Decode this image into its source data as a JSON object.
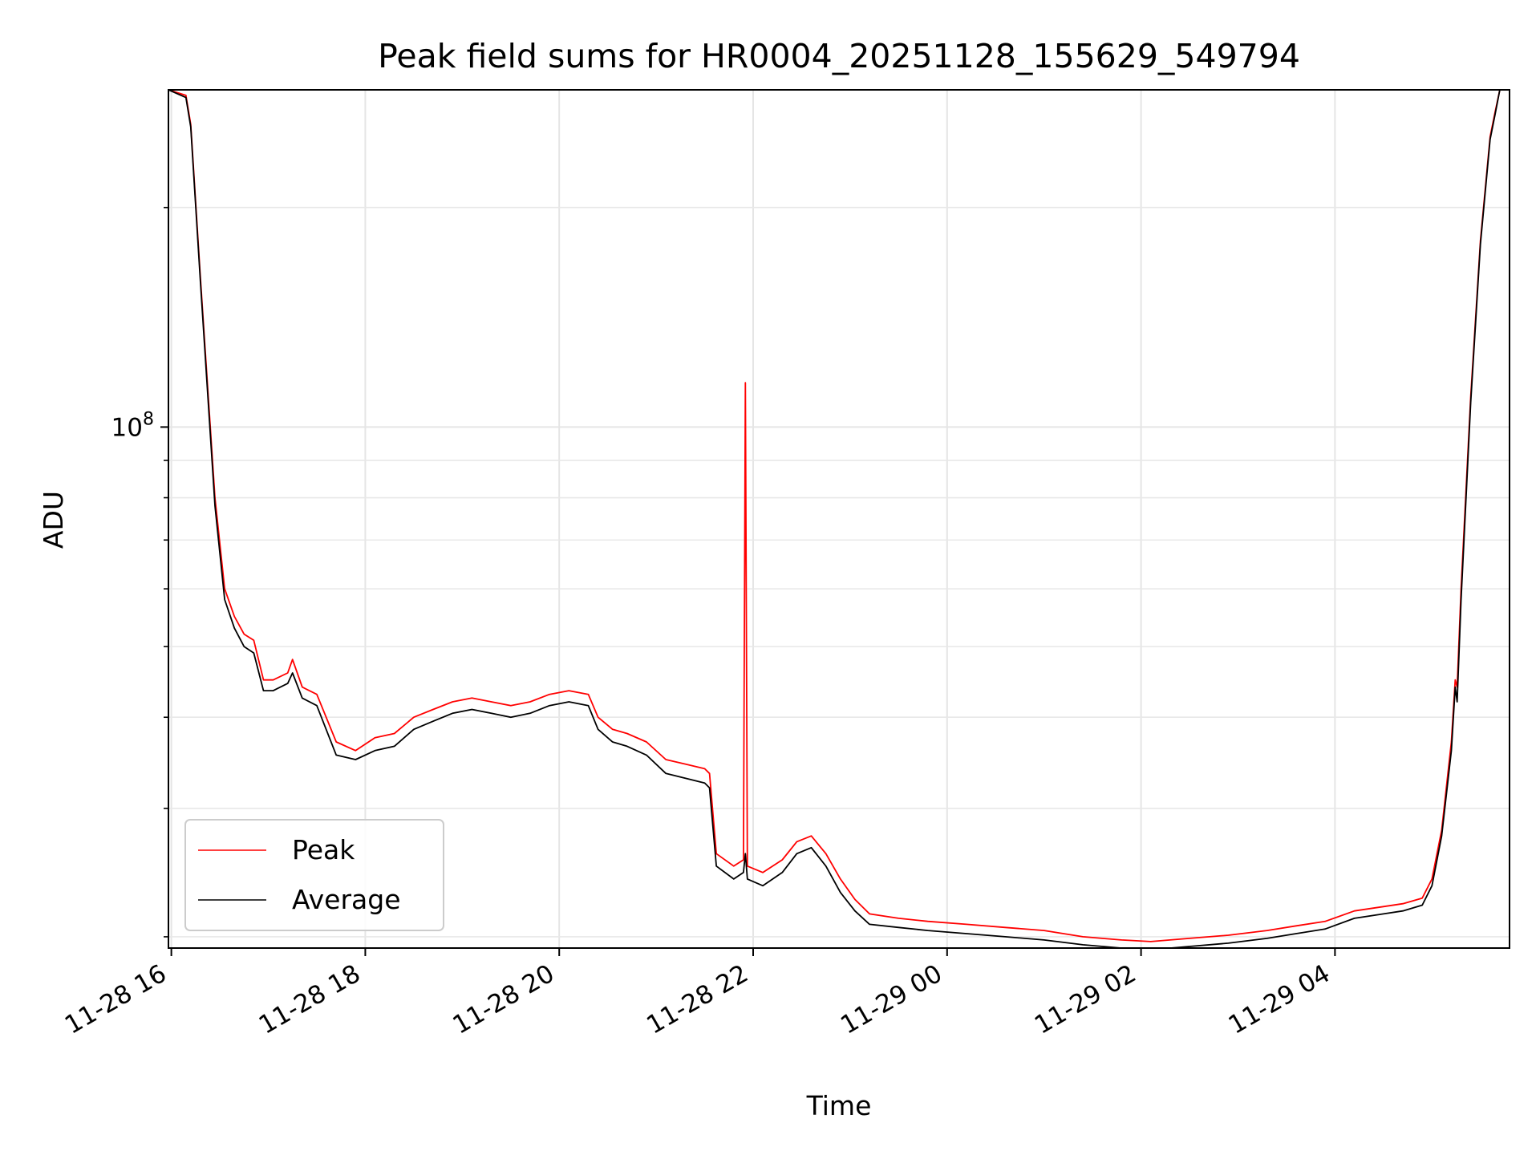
{
  "chart_data": {
    "type": "line",
    "title": "Peak field sums for HR0004_20251128_155629_549794",
    "xlabel": "Time",
    "ylabel": "ADU",
    "yscale": "log",
    "grid": true,
    "legend_position": "lower-left",
    "x_tick_labels": [
      "11-28 16",
      "11-28 18",
      "11-28 20",
      "11-28 22",
      "11-29 00",
      "11-29 02",
      "11-29 04"
    ],
    "x_ticks_hours": [
      16,
      18,
      20,
      22,
      24,
      26,
      28
    ],
    "xlim_hours": [
      15.97,
      29.8
    ],
    "y_tick_labels": [
      {
        "base": "10",
        "exp": "8"
      }
    ],
    "y_major_ticks": [
      100000000
    ],
    "y_minor_ticks": [
      20000000,
      30000000,
      40000000,
      50000000,
      60000000,
      70000000,
      80000000,
      90000000,
      200000000
    ],
    "ylim": [
      19300000,
      290000000
    ],
    "series": [
      {
        "name": "Peak",
        "color": "#ff0000",
        "x_hours": [
          15.97,
          16.15,
          16.2,
          16.3,
          16.45,
          16.55,
          16.65,
          16.75,
          16.85,
          16.95,
          17.05,
          17.2,
          17.25,
          17.35,
          17.5,
          17.7,
          17.9,
          18.1,
          18.3,
          18.5,
          18.7,
          18.9,
          19.1,
          19.3,
          19.5,
          19.7,
          19.9,
          20.1,
          20.3,
          20.4,
          20.55,
          20.7,
          20.9,
          21.1,
          21.3,
          21.5,
          21.55,
          21.62,
          21.8,
          21.9,
          21.92,
          21.94,
          22.1,
          22.3,
          22.45,
          22.6,
          22.75,
          22.9,
          23.05,
          23.2,
          23.5,
          23.8,
          24.2,
          24.6,
          25.0,
          25.4,
          25.8,
          26.1,
          26.5,
          26.9,
          27.3,
          27.6,
          27.9,
          28.2,
          28.5,
          28.7,
          28.9,
          29.0,
          29.1,
          29.2,
          29.24,
          29.26,
          29.3,
          29.4,
          29.5,
          29.6,
          29.65,
          29.7,
          29.8
        ],
        "values": [
          290000000,
          285000000,
          260000000,
          160000000,
          80000000,
          60000000,
          55000000,
          52000000,
          51000000,
          45000000,
          45000000,
          46000000,
          48000000,
          44000000,
          43000000,
          37000000,
          36000000,
          37500000,
          38000000,
          40000000,
          41000000,
          42000000,
          42500000,
          42000000,
          41500000,
          42000000,
          43000000,
          43500000,
          43000000,
          40000000,
          38500000,
          38000000,
          37000000,
          35000000,
          34500000,
          34000000,
          33500000,
          26000000,
          25000000,
          25500000,
          115000000,
          25000000,
          24500000,
          25500000,
          27000000,
          27500000,
          26000000,
          24000000,
          22500000,
          21500000,
          21200000,
          21000000,
          20800000,
          20600000,
          20400000,
          20000000,
          19800000,
          19700000,
          19900000,
          20100000,
          20400000,
          20700000,
          21000000,
          21700000,
          22000000,
          22200000,
          22600000,
          24000000,
          28000000,
          37000000,
          45000000,
          44000000,
          60000000,
          110000000,
          180000000,
          250000000,
          270000000,
          290000000,
          290000000
        ]
      },
      {
        "name": "Average",
        "color": "#000000",
        "x_hours": [
          15.97,
          16.15,
          16.2,
          16.3,
          16.45,
          16.55,
          16.65,
          16.75,
          16.85,
          16.95,
          17.05,
          17.2,
          17.25,
          17.35,
          17.5,
          17.7,
          17.9,
          18.1,
          18.3,
          18.5,
          18.7,
          18.9,
          19.1,
          19.3,
          19.5,
          19.7,
          19.9,
          20.1,
          20.3,
          20.4,
          20.55,
          20.7,
          20.9,
          21.1,
          21.3,
          21.5,
          21.55,
          21.62,
          21.8,
          21.9,
          21.92,
          21.94,
          22.1,
          22.3,
          22.45,
          22.6,
          22.75,
          22.9,
          23.05,
          23.2,
          23.5,
          23.8,
          24.2,
          24.6,
          25.0,
          25.4,
          25.8,
          26.1,
          26.5,
          26.9,
          27.3,
          27.6,
          27.9,
          28.2,
          28.5,
          28.7,
          28.9,
          29.0,
          29.1,
          29.2,
          29.24,
          29.26,
          29.3,
          29.4,
          29.5,
          29.6,
          29.65,
          29.7,
          29.8
        ],
        "values": [
          290000000,
          283000000,
          258000000,
          158000000,
          78000000,
          58000000,
          53000000,
          50000000,
          49000000,
          43500000,
          43500000,
          44500000,
          46000000,
          42500000,
          41500000,
          35500000,
          35000000,
          36000000,
          36500000,
          38500000,
          39500000,
          40500000,
          41000000,
          40500000,
          40000000,
          40500000,
          41500000,
          42000000,
          41500000,
          38500000,
          37000000,
          36500000,
          35500000,
          33500000,
          33000000,
          32500000,
          32000000,
          25000000,
          24000000,
          24500000,
          26000000,
          24000000,
          23500000,
          24500000,
          26000000,
          26500000,
          25000000,
          23000000,
          21700000,
          20800000,
          20600000,
          20400000,
          20200000,
          20000000,
          19800000,
          19500000,
          19300000,
          19200000,
          19400000,
          19600000,
          19900000,
          20200000,
          20500000,
          21200000,
          21500000,
          21700000,
          22100000,
          23500000,
          27500000,
          36000000,
          44000000,
          42000000,
          58000000,
          108000000,
          178000000,
          248000000,
          268000000,
          290000000,
          290000000
        ]
      }
    ]
  }
}
